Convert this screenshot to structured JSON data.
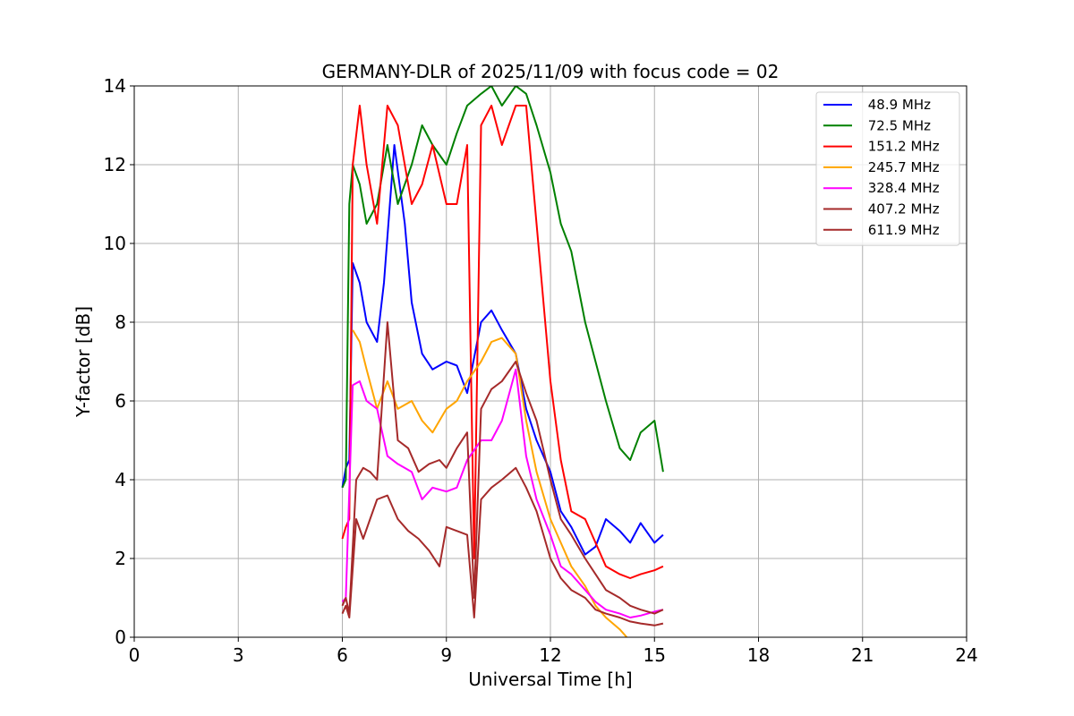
{
  "chart_data": {
    "type": "line",
    "title": "GERMANY-DLR of 2025/11/09 with focus code = 02",
    "xlabel": "Universal Time [h]",
    "ylabel": "Y-factor [dB]",
    "xlim": [
      0,
      24
    ],
    "ylim": [
      0,
      14
    ],
    "xticks": [
      0,
      3,
      6,
      9,
      12,
      15,
      18,
      21,
      24
    ],
    "yticks": [
      0,
      2,
      4,
      6,
      8,
      10,
      12,
      14
    ],
    "xtick_labels": [
      "0",
      "3",
      "6",
      "9",
      "12",
      "15",
      "18",
      "21",
      "24"
    ],
    "ytick_labels": [
      "0",
      "2",
      "4",
      "6",
      "8",
      "10",
      "12",
      "14"
    ],
    "grid": true,
    "legend_position": "top-right",
    "series": [
      {
        "name": " 48.9 MHz",
        "color": "#0000ff",
        "x": [
          6.0,
          6.1,
          6.2,
          6.3,
          6.5,
          6.7,
          7.0,
          7.2,
          7.5,
          7.8,
          8.0,
          8.3,
          8.6,
          9.0,
          9.3,
          9.6,
          10.0,
          10.3,
          10.6,
          11.0,
          11.3,
          11.6,
          12.0,
          12.3,
          12.6,
          13.0,
          13.3,
          13.6,
          14.0,
          14.3,
          14.6,
          15.0,
          15.25
        ],
        "y": [
          3.8,
          4.3,
          4.5,
          9.5,
          9.0,
          8.0,
          7.5,
          9.0,
          12.5,
          10.5,
          8.5,
          7.2,
          6.8,
          7.0,
          6.9,
          6.2,
          8.0,
          8.3,
          7.8,
          7.2,
          5.8,
          5.0,
          4.2,
          3.2,
          2.8,
          2.1,
          2.3,
          3.0,
          2.7,
          2.4,
          2.9,
          2.4,
          2.6
        ]
      },
      {
        "name": " 72.5 MHz",
        "color": "#008000",
        "x": [
          6.0,
          6.1,
          6.2,
          6.3,
          6.5,
          6.7,
          7.0,
          7.3,
          7.6,
          8.0,
          8.3,
          8.6,
          9.0,
          9.3,
          9.6,
          10.0,
          10.3,
          10.6,
          11.0,
          11.3,
          11.6,
          12.0,
          12.3,
          12.6,
          13.0,
          13.3,
          13.6,
          14.0,
          14.3,
          14.6,
          15.0,
          15.25
        ],
        "y": [
          3.8,
          4.0,
          11.0,
          12.0,
          11.5,
          10.5,
          11.0,
          12.5,
          11.0,
          12.0,
          13.0,
          12.5,
          12.0,
          12.8,
          13.5,
          13.8,
          14.0,
          13.5,
          14.0,
          13.8,
          13.0,
          11.8,
          10.5,
          9.8,
          8.0,
          7.0,
          6.0,
          4.8,
          4.5,
          5.2,
          5.5,
          4.2
        ]
      },
      {
        "name": " 151.2 MHz",
        "color": "#ff0000",
        "x": [
          6.0,
          6.1,
          6.2,
          6.3,
          6.5,
          6.7,
          7.0,
          7.3,
          7.6,
          8.0,
          8.3,
          8.6,
          9.0,
          9.3,
          9.6,
          9.8,
          10.0,
          10.3,
          10.6,
          11.0,
          11.3,
          11.6,
          12.0,
          12.3,
          12.6,
          13.0,
          13.3,
          13.6,
          14.0,
          14.3,
          14.6,
          15.0,
          15.25
        ],
        "y": [
          2.5,
          2.8,
          3.0,
          12.0,
          13.5,
          12.0,
          10.5,
          13.5,
          13.0,
          11.0,
          11.5,
          12.5,
          11.0,
          11.0,
          12.5,
          2.0,
          13.0,
          13.5,
          12.5,
          13.5,
          13.5,
          10.5,
          6.5,
          4.5,
          3.2,
          3.0,
          2.4,
          1.8,
          1.6,
          1.5,
          1.6,
          1.7,
          1.8
        ]
      },
      {
        "name": " 245.7 MHz",
        "color": "#ffa500",
        "x": [
          6.3,
          6.5,
          6.7,
          7.0,
          7.3,
          7.6,
          8.0,
          8.3,
          8.6,
          9.0,
          9.3,
          9.6,
          10.0,
          10.3,
          10.6,
          11.0,
          11.3,
          11.6,
          12.0,
          12.3,
          12.6,
          13.0,
          13.3,
          13.6,
          14.0,
          14.2
        ],
        "y": [
          7.8,
          7.5,
          6.8,
          5.8,
          6.5,
          5.8,
          6.0,
          5.5,
          5.2,
          5.8,
          6.0,
          6.5,
          7.0,
          7.5,
          7.6,
          7.2,
          5.5,
          4.2,
          3.0,
          2.4,
          1.8,
          1.3,
          0.8,
          0.5,
          0.2,
          0.0
        ]
      },
      {
        "name": " 328.4 MHz",
        "color": "#ff00ff",
        "x": [
          6.0,
          6.1,
          6.3,
          6.5,
          6.7,
          7.0,
          7.3,
          7.6,
          8.0,
          8.3,
          8.6,
          9.0,
          9.3,
          9.6,
          10.0,
          10.3,
          10.6,
          11.0,
          11.3,
          11.6,
          12.0,
          12.3,
          12.6,
          13.0,
          13.3,
          13.6,
          14.0,
          14.3,
          14.6,
          15.0,
          15.25
        ],
        "y": [
          0.9,
          1.0,
          6.4,
          6.5,
          6.0,
          5.8,
          4.6,
          4.4,
          4.2,
          3.5,
          3.8,
          3.7,
          3.8,
          4.5,
          5.0,
          5.0,
          5.5,
          6.8,
          4.6,
          3.5,
          2.6,
          1.8,
          1.6,
          1.2,
          0.9,
          0.7,
          0.6,
          0.5,
          0.55,
          0.65,
          0.7
        ]
      },
      {
        "name": " 407.2 MHz",
        "color": "#a52a2a",
        "x": [
          6.0,
          6.1,
          6.2,
          6.4,
          6.6,
          6.8,
          7.0,
          7.3,
          7.6,
          7.9,
          8.2,
          8.5,
          8.8,
          9.0,
          9.3,
          9.6,
          9.8,
          10.0,
          10.3,
          10.6,
          11.0,
          11.3,
          11.6,
          12.0,
          12.3,
          12.6,
          13.0,
          13.3,
          13.6,
          14.0,
          14.3,
          14.6,
          15.0,
          15.25
        ],
        "y": [
          0.8,
          1.0,
          0.6,
          4.0,
          4.3,
          4.2,
          4.0,
          8.0,
          5.0,
          4.8,
          4.2,
          4.4,
          4.5,
          4.3,
          4.8,
          5.2,
          1.0,
          5.8,
          6.3,
          6.5,
          7.0,
          6.2,
          5.5,
          4.0,
          3.0,
          2.6,
          2.0,
          1.6,
          1.2,
          1.0,
          0.8,
          0.7,
          0.6,
          0.7
        ]
      },
      {
        "name": " 611.9 MHz",
        "color": "#a52a2a",
        "x": [
          6.0,
          6.1,
          6.2,
          6.4,
          6.6,
          6.8,
          7.0,
          7.3,
          7.6,
          7.9,
          8.2,
          8.5,
          8.8,
          9.0,
          9.3,
          9.6,
          9.8,
          10.0,
          10.3,
          10.6,
          11.0,
          11.3,
          11.6,
          12.0,
          12.3,
          12.6,
          13.0,
          13.3,
          13.6,
          14.0,
          14.3,
          14.6,
          15.0,
          15.25
        ],
        "y": [
          0.6,
          0.8,
          0.5,
          3.0,
          2.5,
          3.0,
          3.5,
          3.6,
          3.0,
          2.7,
          2.5,
          2.2,
          1.8,
          2.8,
          2.7,
          2.6,
          0.5,
          3.5,
          3.8,
          4.0,
          4.3,
          3.8,
          3.2,
          2.0,
          1.5,
          1.2,
          1.0,
          0.7,
          0.6,
          0.5,
          0.4,
          0.35,
          0.3,
          0.35
        ]
      }
    ]
  }
}
